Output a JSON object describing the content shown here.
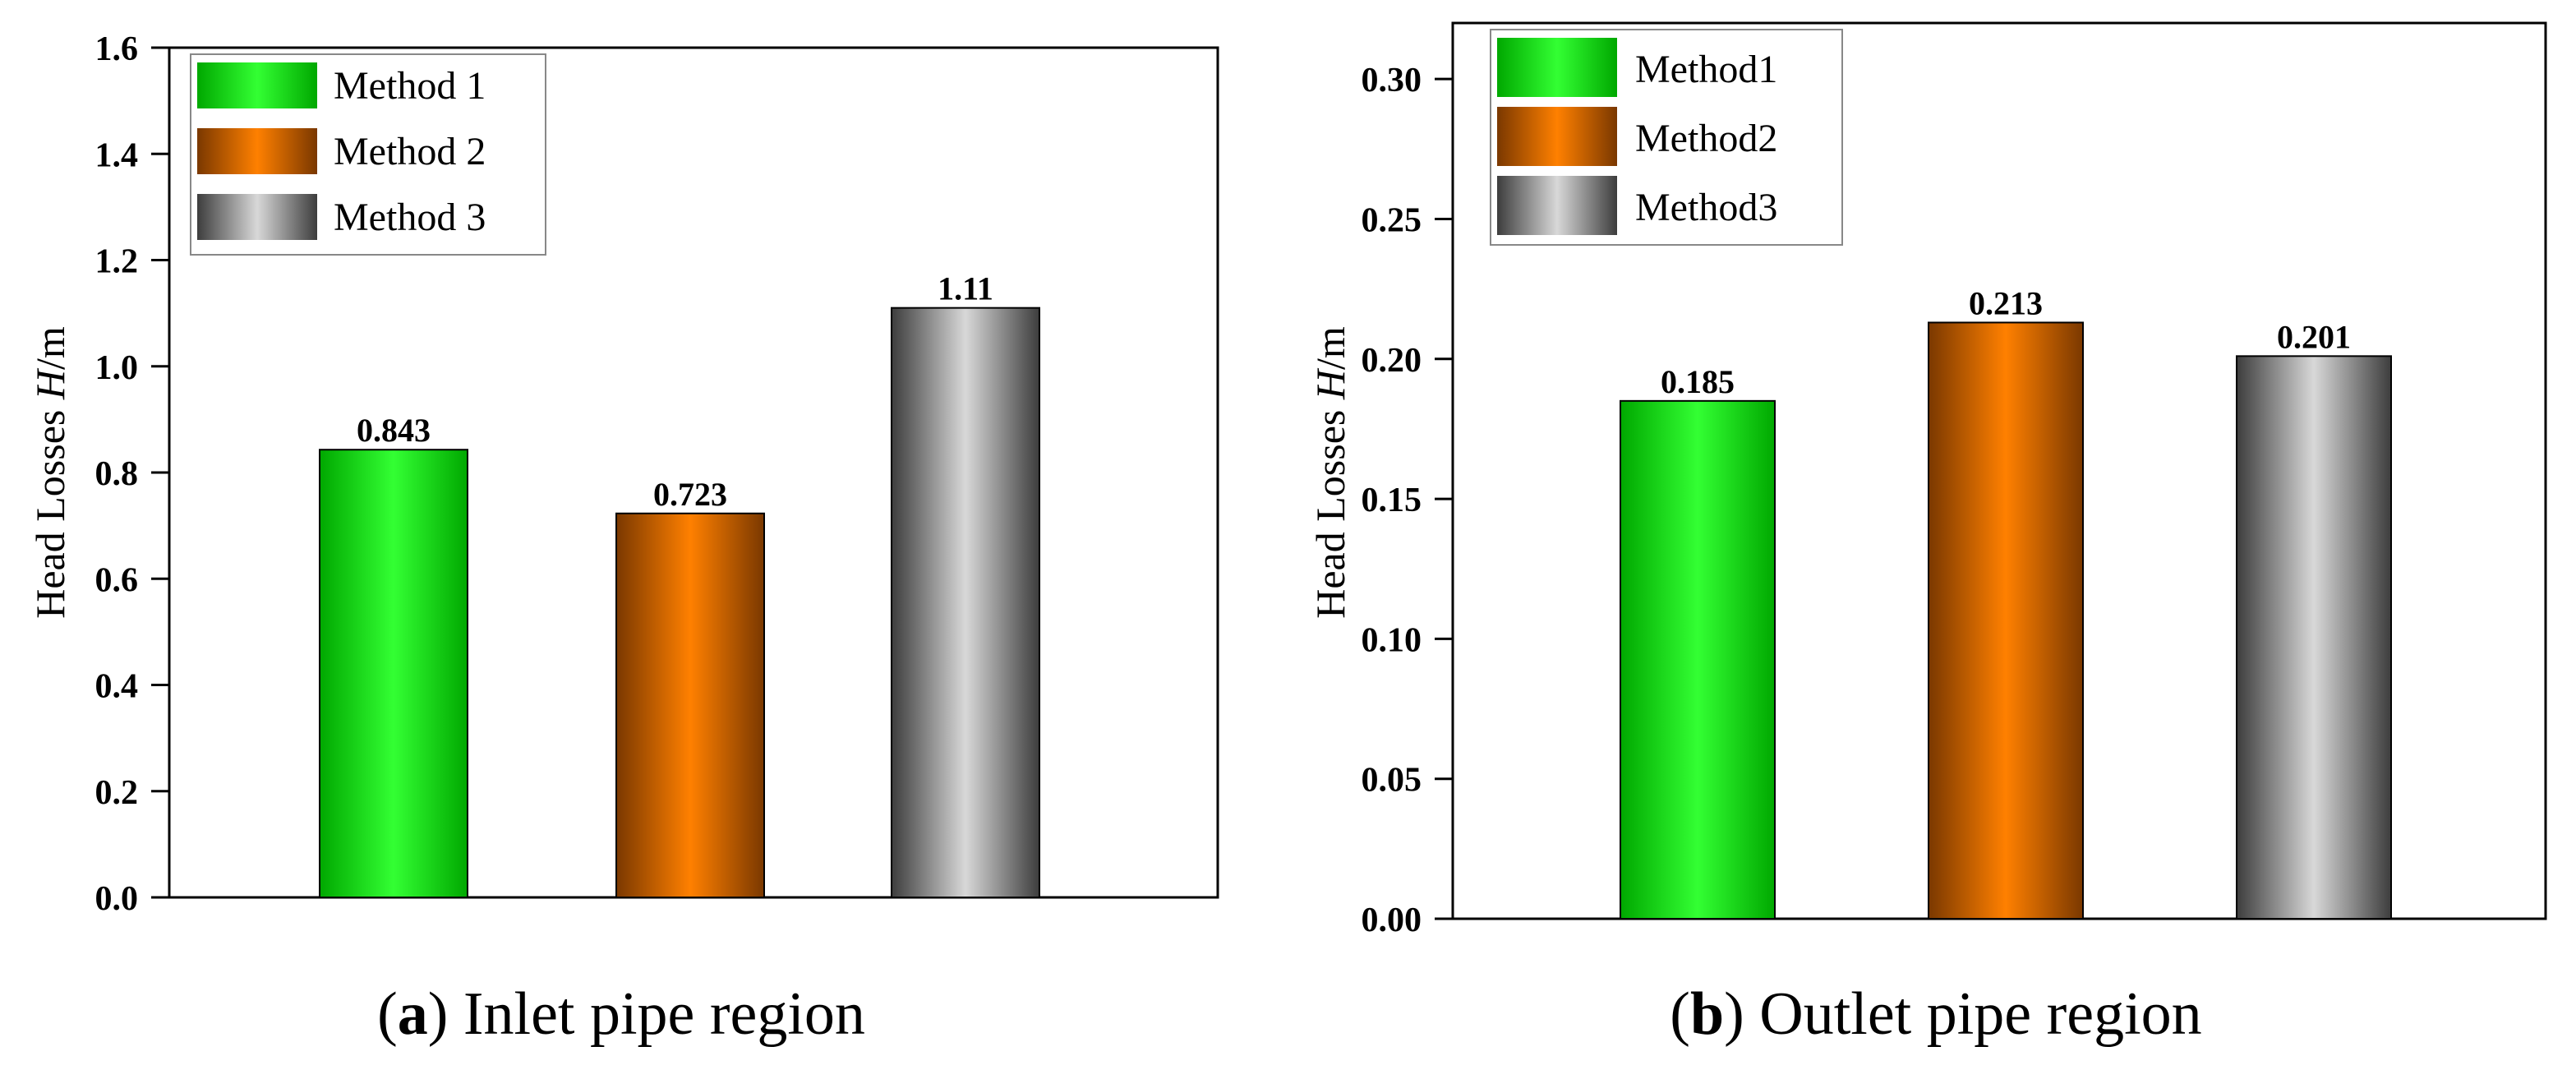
{
  "chart_data": [
    {
      "type": "bar",
      "title": "",
      "categories": [
        "Method 1",
        "Method 2",
        "Method 3"
      ],
      "values": [
        0.843,
        0.723,
        1.11
      ],
      "data_labels": [
        "0.843",
        "0.723",
        "1.11"
      ],
      "ylabel_prefix": "Head Losses ",
      "ylabel_var": "H",
      "ylabel_unit": "/m",
      "xlabel": "",
      "ylim": [
        0,
        1.6
      ],
      "yticks": [
        "0.0",
        "0.2",
        "0.4",
        "0.6",
        "0.8",
        "1.0",
        "1.2",
        "1.4",
        "1.6"
      ],
      "legend": [
        "Method 1",
        "Method 2",
        "Method 3"
      ],
      "legend_position": "top-left",
      "caption_letter": "a",
      "caption_text": "Inlet pipe region",
      "colors": [
        "#00dd00",
        "#ff7f00",
        "#bbbbbb"
      ]
    },
    {
      "type": "bar",
      "title": "",
      "categories": [
        "Method1",
        "Method2",
        "Method3"
      ],
      "values": [
        0.185,
        0.213,
        0.201
      ],
      "data_labels": [
        "0.185",
        "0.213",
        "0.201"
      ],
      "ylabel_prefix": "Head Losses ",
      "ylabel_var": "H",
      "ylabel_unit": "/m",
      "xlabel": "",
      "ylim": [
        0,
        0.32
      ],
      "yticks": [
        "0.00",
        "0.05",
        "0.10",
        "0.15",
        "0.20",
        "0.25",
        "0.30"
      ],
      "legend": [
        "Method1",
        "Method2",
        "Method3"
      ],
      "legend_position": "top-left",
      "caption_letter": "b",
      "caption_text": "Outlet pipe region",
      "colors": [
        "#00dd00",
        "#ff7f00",
        "#bbbbbb"
      ]
    }
  ]
}
